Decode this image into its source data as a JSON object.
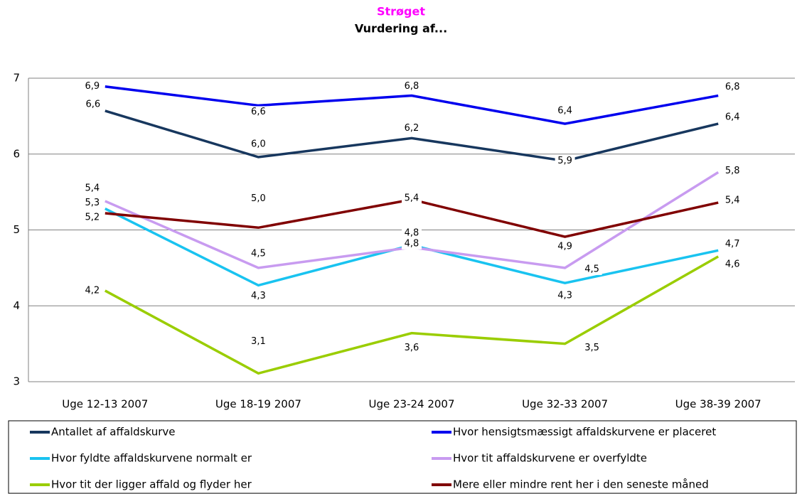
{
  "chart_data": {
    "type": "line",
    "title": "Strøget",
    "subtitle": "Vurdering af...",
    "categories": [
      "Uge 12-13 2007",
      "Uge 18-19 2007",
      "Uge 23-24 2007",
      "Uge 32-33 2007",
      "Uge 38-39 2007"
    ],
    "ylim": [
      3,
      7
    ],
    "yticks": [
      3,
      4,
      5,
      6,
      7
    ],
    "grid": true,
    "series": [
      {
        "name": "Antallet af affaldskurve",
        "color": "#17375e",
        "values": [
          6.57,
          5.96,
          6.21,
          5.91,
          6.4
        ],
        "value_labels": [
          "6,6",
          "6,0",
          "6,2",
          "5,9",
          "6,4"
        ]
      },
      {
        "name": "Hvor hensigtsmæssigt affaldskurvene er placeret",
        "color": "#0000ee",
        "values": [
          6.89,
          6.64,
          6.77,
          6.4,
          6.77
        ],
        "value_labels": [
          "6,9",
          "6,6",
          "6,8",
          "6,4",
          "6,8"
        ]
      },
      {
        "name": "Hvor fyldte affaldskurvene normalt er",
        "color": "#19c3f0",
        "values": [
          5.28,
          4.27,
          4.8,
          4.3,
          4.73
        ],
        "value_labels": [
          "5,3",
          "4,3",
          "4,8",
          "4,3",
          "4,7"
        ]
      },
      {
        "name": "Hvor tit affaldskurvene er overfyldte",
        "color": "#c89bf0",
        "values": [
          5.38,
          4.5,
          4.77,
          4.5,
          5.76
        ],
        "value_labels": [
          "5,4",
          "4,5",
          "4,8",
          "4,5",
          "5,8"
        ]
      },
      {
        "name": "Hvor tit der ligger affald og flyder her",
        "color": "#9acd00",
        "values": [
          4.2,
          3.11,
          3.64,
          3.5,
          4.65
        ],
        "value_labels": [
          "4,2",
          "3,1",
          "3,6",
          "3,5",
          "4,6"
        ]
      },
      {
        "name": "Mere eller mindre rent her i den seneste måned",
        "color": "#800000",
        "values": [
          5.22,
          5.03,
          5.4,
          4.91,
          5.36
        ],
        "value_labels": [
          "5,2",
          "5,0",
          "5,4",
          "4,9",
          "5,4"
        ]
      }
    ]
  }
}
